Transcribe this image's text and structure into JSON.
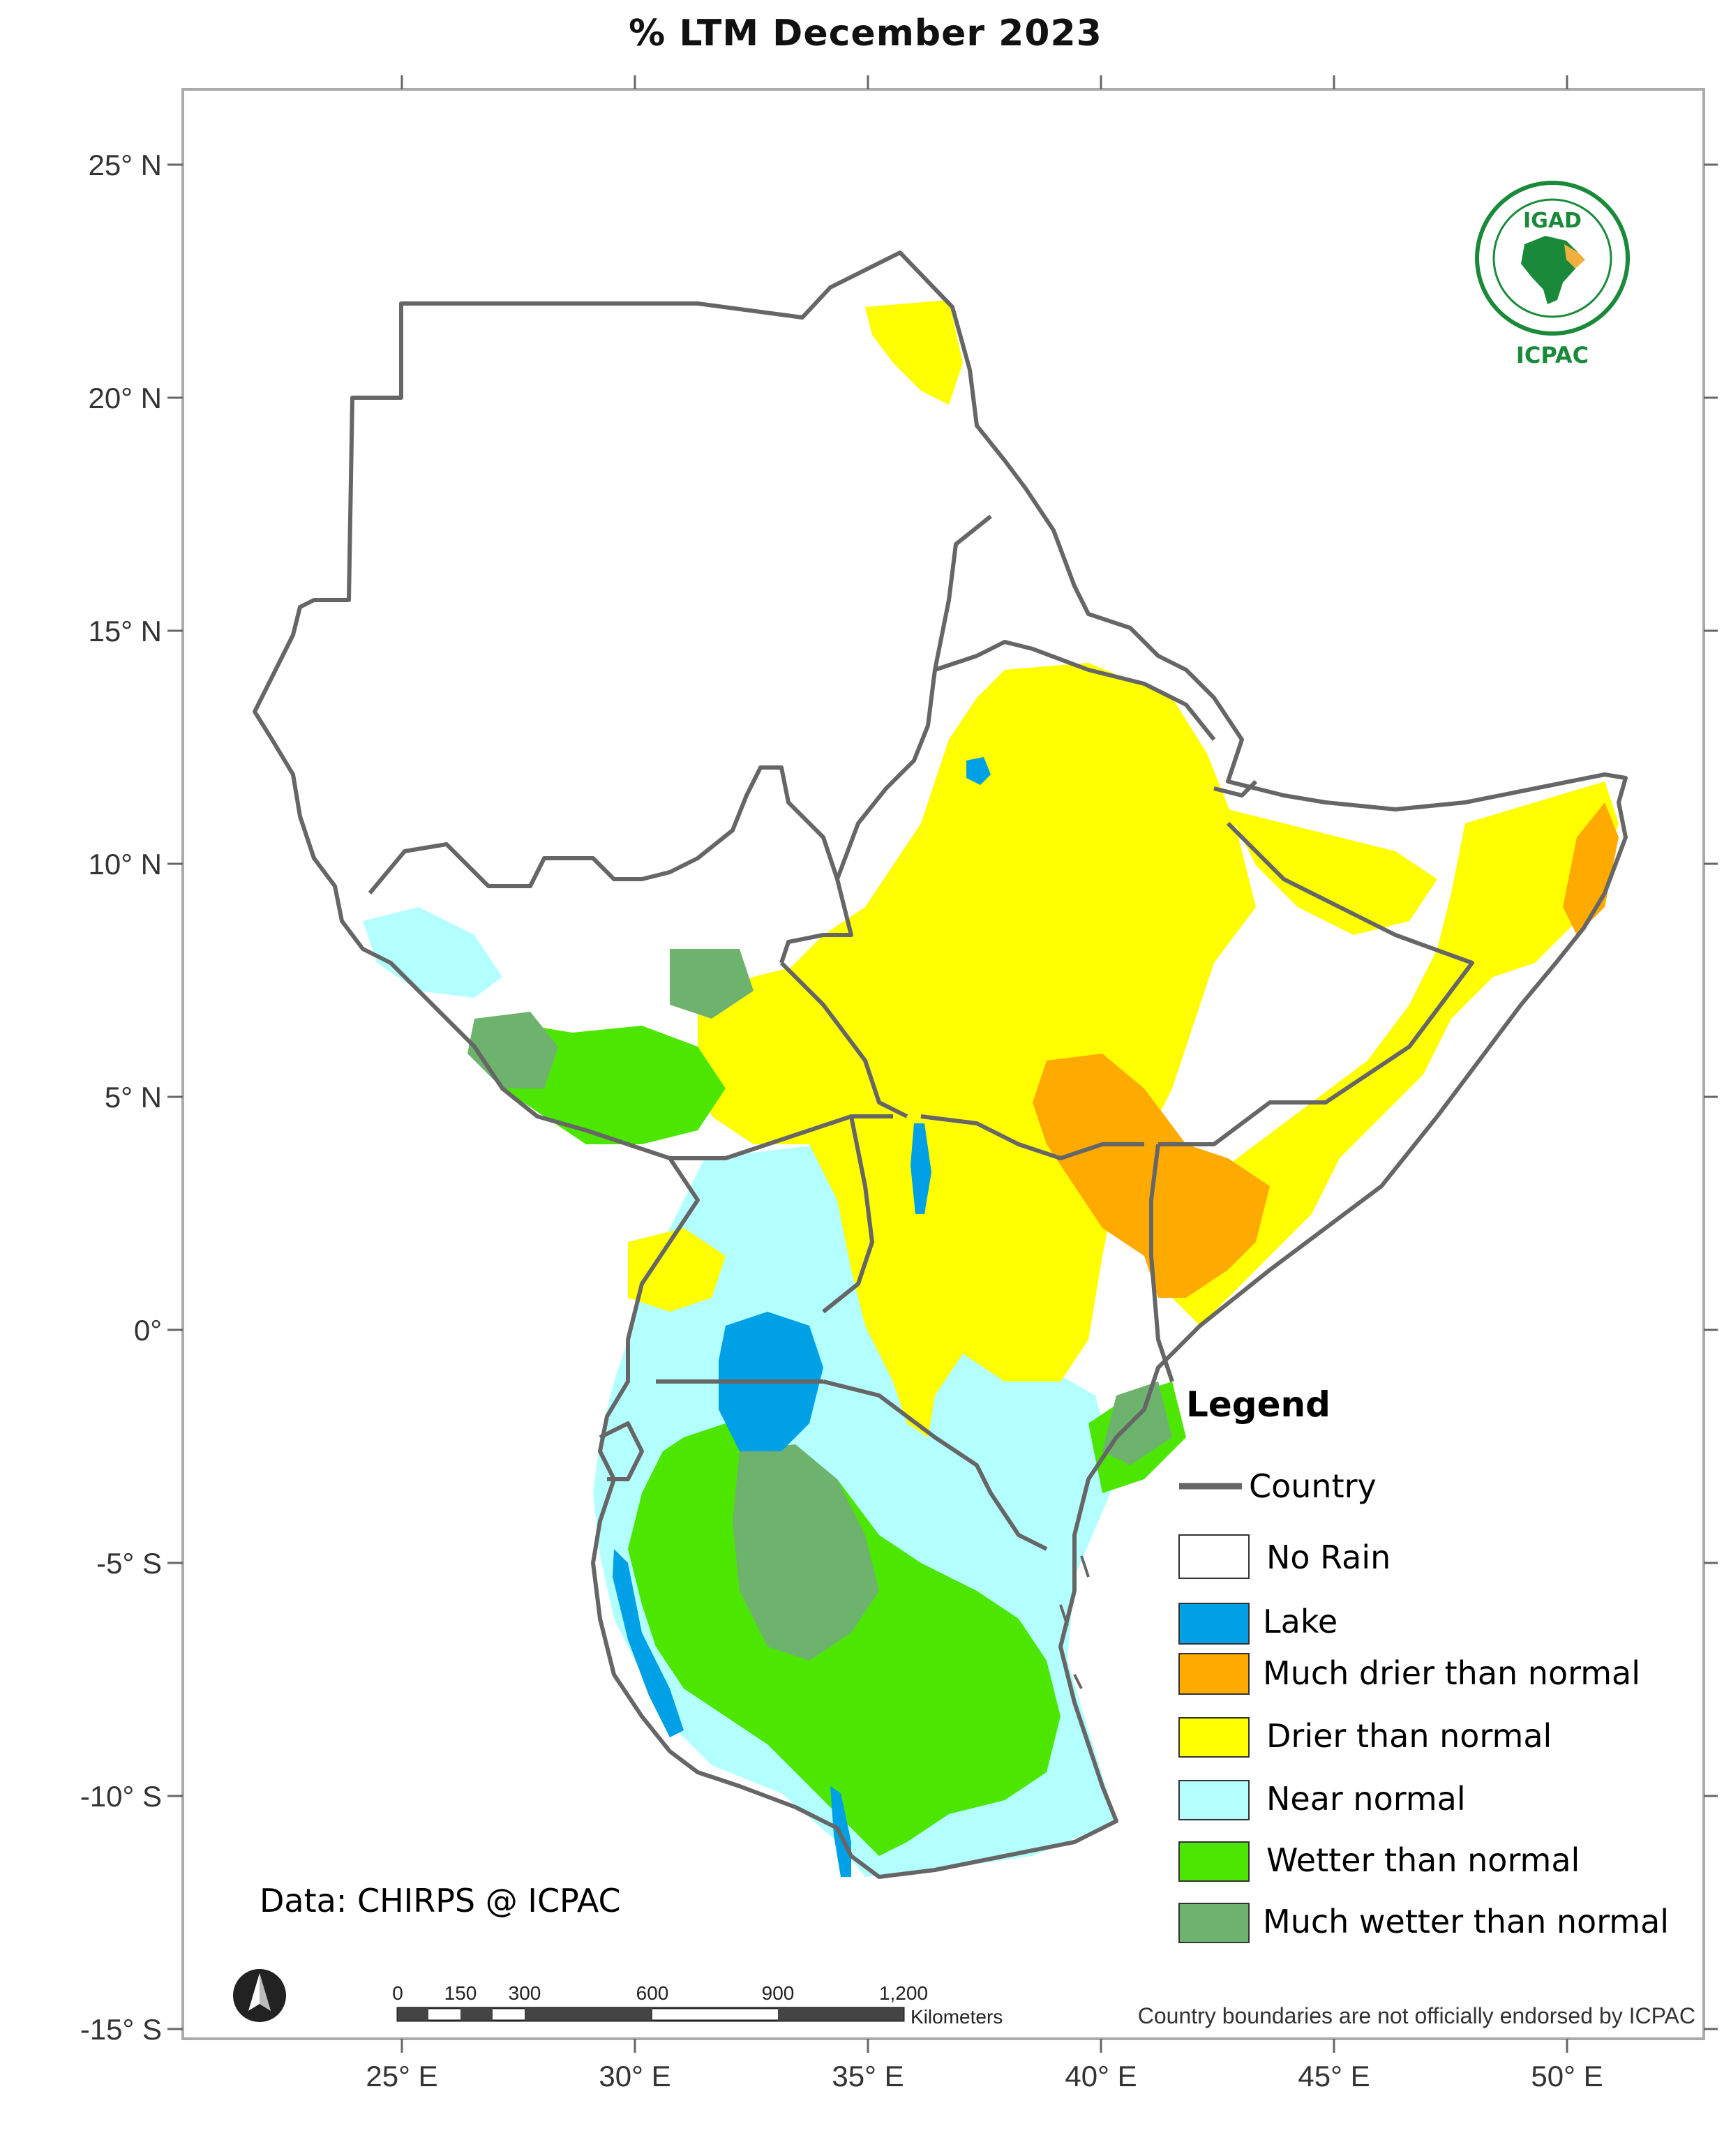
{
  "title": "% LTM  December 2023",
  "lat_labels": [
    "25° N",
    "20° N",
    "15° N",
    "10° N",
    "5° N",
    "0°",
    "-5° S",
    "-10° S",
    "-15° S"
  ],
  "lon_labels": [
    "25° E",
    "30° E",
    "35° E",
    "40° E",
    "45° E",
    "50° E"
  ],
  "legend": {
    "title": "Legend",
    "country_label": "Country",
    "items": [
      {
        "label": "No Rain",
        "color": "#ffffff"
      },
      {
        "label": "Lake",
        "color": "#00a0e6"
      },
      {
        "label": "Much drier than normal",
        "color": "#ffaa00"
      },
      {
        "label": "Drier than normal",
        "color": "#ffff00"
      },
      {
        "label": "Near normal",
        "color": "#b3ffff"
      },
      {
        "label": "Wetter than normal",
        "color": "#4ce600"
      },
      {
        "label": "Much wetter than normal",
        "color": "#6db36d"
      }
    ]
  },
  "credit": "Data: CHIRPS @ ICPAC",
  "disclaimer": "Country boundaries are not officially endorsed by ICPAC",
  "scale_bar": {
    "ticks": [
      "0",
      "150",
      "300",
      "600",
      "900",
      "1,200"
    ],
    "unit": "Kilometers"
  },
  "logo": {
    "top": "IGAD",
    "bottom": "ICPAC"
  }
}
